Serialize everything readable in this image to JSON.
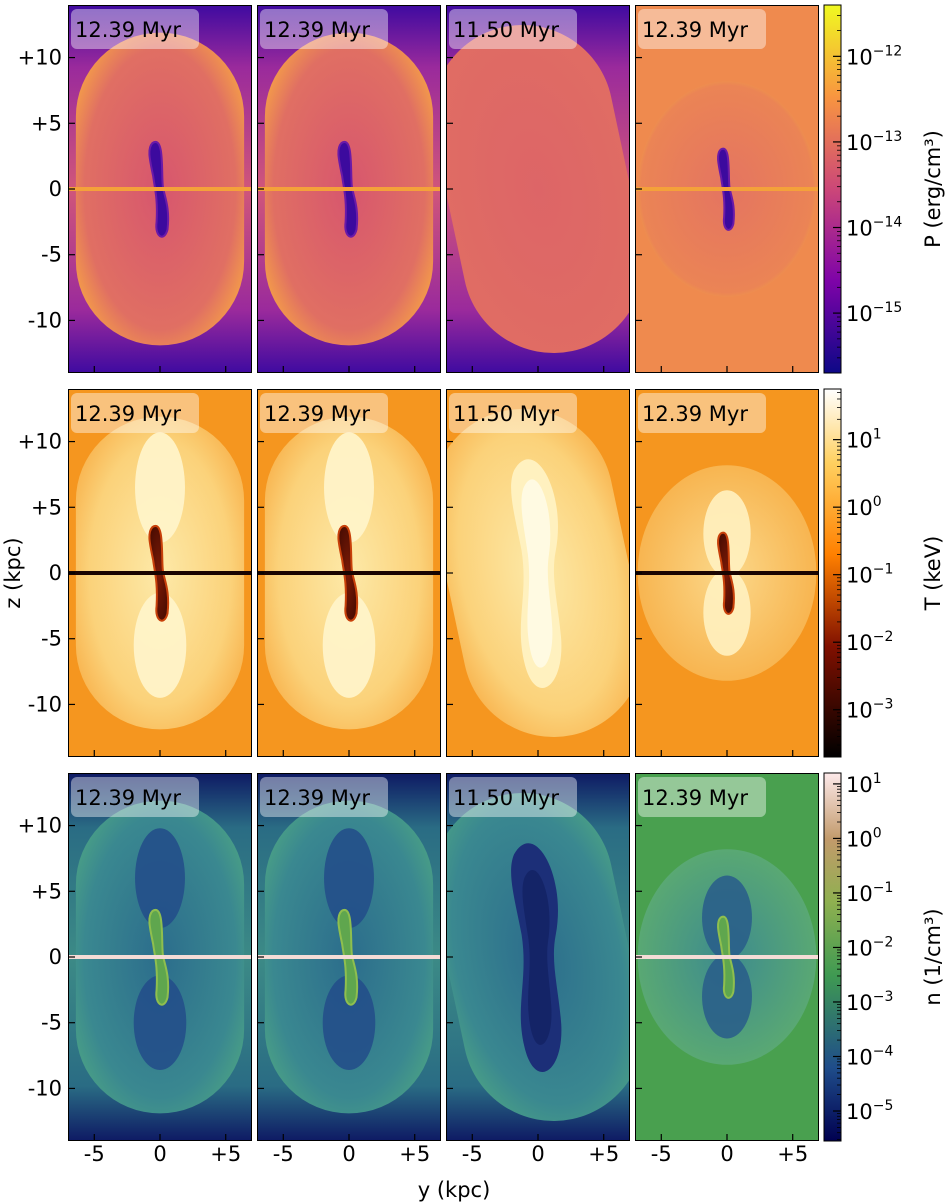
{
  "chart_data": {
    "type": "heatmap",
    "figure": "3x4 grid of simulation slices (pressure, temperature, density)",
    "shared_axes": {
      "xlabel": "y (kpc)",
      "ylabel": "z (kpc)",
      "xlim": [
        -7,
        7
      ],
      "ylim": [
        -14,
        14
      ],
      "xticks": [
        -5,
        0,
        5
      ],
      "xtick_labels": [
        "-5",
        "0",
        "+5"
      ],
      "yticks": [
        10,
        5,
        0,
        -5,
        -10
      ],
      "ytick_labels": [
        "+10",
        "+5",
        "0",
        "-5",
        "-10"
      ]
    },
    "columns": [
      {
        "time": "12.39 Myr"
      },
      {
        "time": "12.39 Myr"
      },
      {
        "time": "11.50 Myr"
      },
      {
        "time": "12.39 Myr"
      }
    ],
    "rows": [
      {
        "quantity": "P",
        "colorbar_label": "P (erg/cm³)",
        "colormap": "plasma",
        "scale": "log",
        "ticks": [
          {
            "mant": "10",
            "exp": "−12",
            "value": 1e-12
          },
          {
            "mant": "10",
            "exp": "−13",
            "value": 1e-13
          },
          {
            "mant": "10",
            "exp": "−14",
            "value": 1e-14
          },
          {
            "mant": "10",
            "exp": "−15",
            "value": 1e-15
          }
        ],
        "colors": {
          "low": "#2a0593",
          "mid": "#cc4778",
          "high": "#f0f921",
          "bg_inner": "#d8606b",
          "ambient_col4": "#ef8a4e"
        }
      },
      {
        "quantity": "T",
        "colorbar_label": "T (keV)",
        "colormap": "afmhot",
        "scale": "log",
        "ticks": [
          {
            "mant": "10",
            "exp": "1",
            "value": 10
          },
          {
            "mant": "10",
            "exp": "0",
            "value": 1
          },
          {
            "mant": "10",
            "exp": "−1",
            "value": 0.1
          },
          {
            "mant": "10",
            "exp": "−2",
            "value": 0.01
          },
          {
            "mant": "10",
            "exp": "−3",
            "value": 0.001
          }
        ],
        "colors": {
          "low": "#000000",
          "mid": "#c8400a",
          "high": "#ffffff",
          "ambient": "#f5961f"
        }
      },
      {
        "quantity": "n",
        "colorbar_label": "n (1/cm³)",
        "colormap": "gist_earth",
        "scale": "log",
        "ticks": [
          {
            "mant": "10",
            "exp": "1",
            "value": 10
          },
          {
            "mant": "10",
            "exp": "0",
            "value": 1
          },
          {
            "mant": "10",
            "exp": "−1",
            "value": 0.1
          },
          {
            "mant": "10",
            "exp": "−2",
            "value": 0.01
          },
          {
            "mant": "10",
            "exp": "−3",
            "value": 0.001
          },
          {
            "mant": "10",
            "exp": "−4",
            "value": 0.0001
          },
          {
            "mant": "10",
            "exp": "−5",
            "value": 1e-05
          }
        ],
        "colors": {
          "low": "#10145e",
          "mid": "#3f9a52",
          "high": "#fde9ea",
          "ambient_col4": "#49a04f"
        }
      }
    ]
  }
}
